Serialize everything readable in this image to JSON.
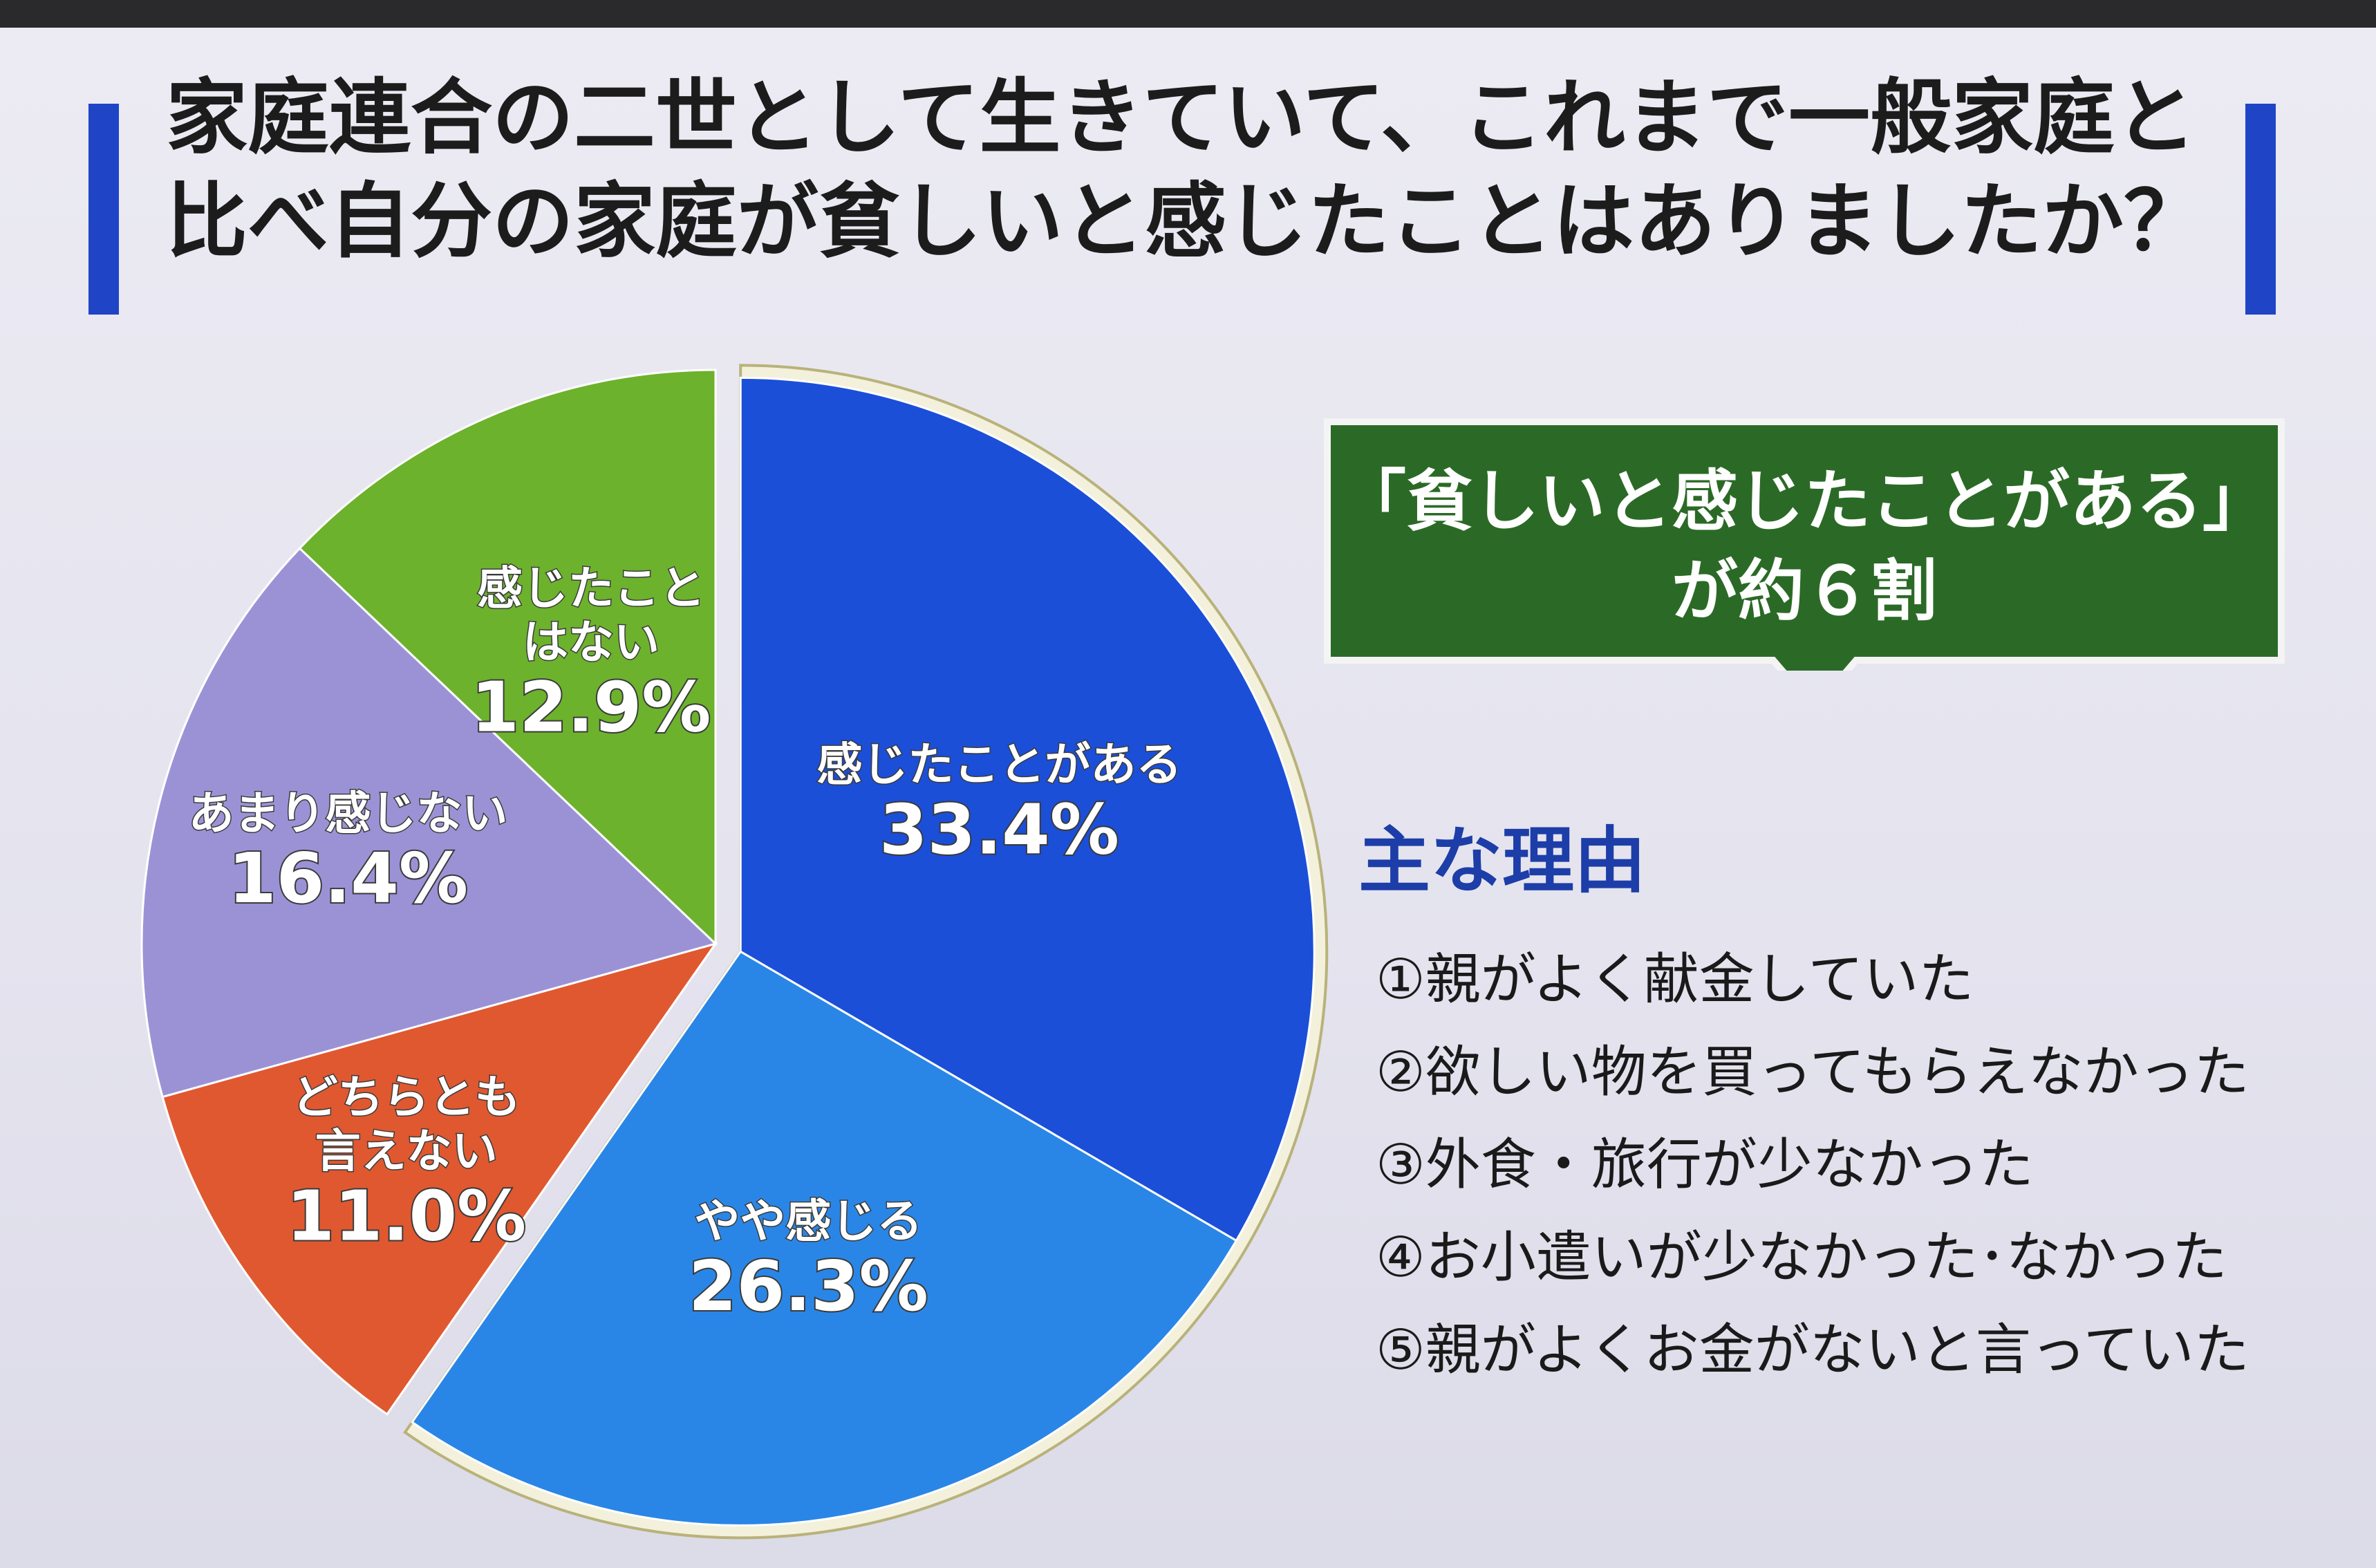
{
  "title": {
    "line1": "家庭連合の二世として生きていて、これまで一般家庭と",
    "line2": "比べ自分の家庭が貧しいと感じたことはありましたか？"
  },
  "callout": {
    "line1": "「貧しいと感じたことがある」",
    "line2": "が約６割",
    "color": "#2b6a26"
  },
  "reasons": {
    "heading": "主な理由",
    "items": [
      "①親がよく献金していた",
      "②欲しい物を買ってもらえなかった",
      "③外食・旅行が少なかった",
      "④お小遣いが少なかった･なかった",
      "⑤親がよくお金がないと言っていた"
    ]
  },
  "chart_data": {
    "type": "pie",
    "title": "",
    "unit": "%",
    "start": "12 o'clock, clockwise",
    "exploded": [
      "感じたことがある",
      "やや感じる"
    ],
    "slices": [
      {
        "label": [
          "感じたことがある"
        ],
        "value": 33.4,
        "display": "33.4%",
        "color": "#1b4fd8"
      },
      {
        "label": [
          "やや感じる"
        ],
        "value": 26.3,
        "display": "26.3%",
        "color": "#2a86e6"
      },
      {
        "label": [
          "どちらとも",
          "言えない"
        ],
        "value": 11.0,
        "display": "11.0%",
        "color": "#e0582f"
      },
      {
        "label": [
          "あまり感じない"
        ],
        "value": 16.4,
        "display": "16.4%",
        "color": "#9b92d6"
      },
      {
        "label": [
          "感じたこと",
          "はない"
        ],
        "value": 12.9,
        "display": "12.9%",
        "color": "#6cb22c"
      }
    ]
  }
}
